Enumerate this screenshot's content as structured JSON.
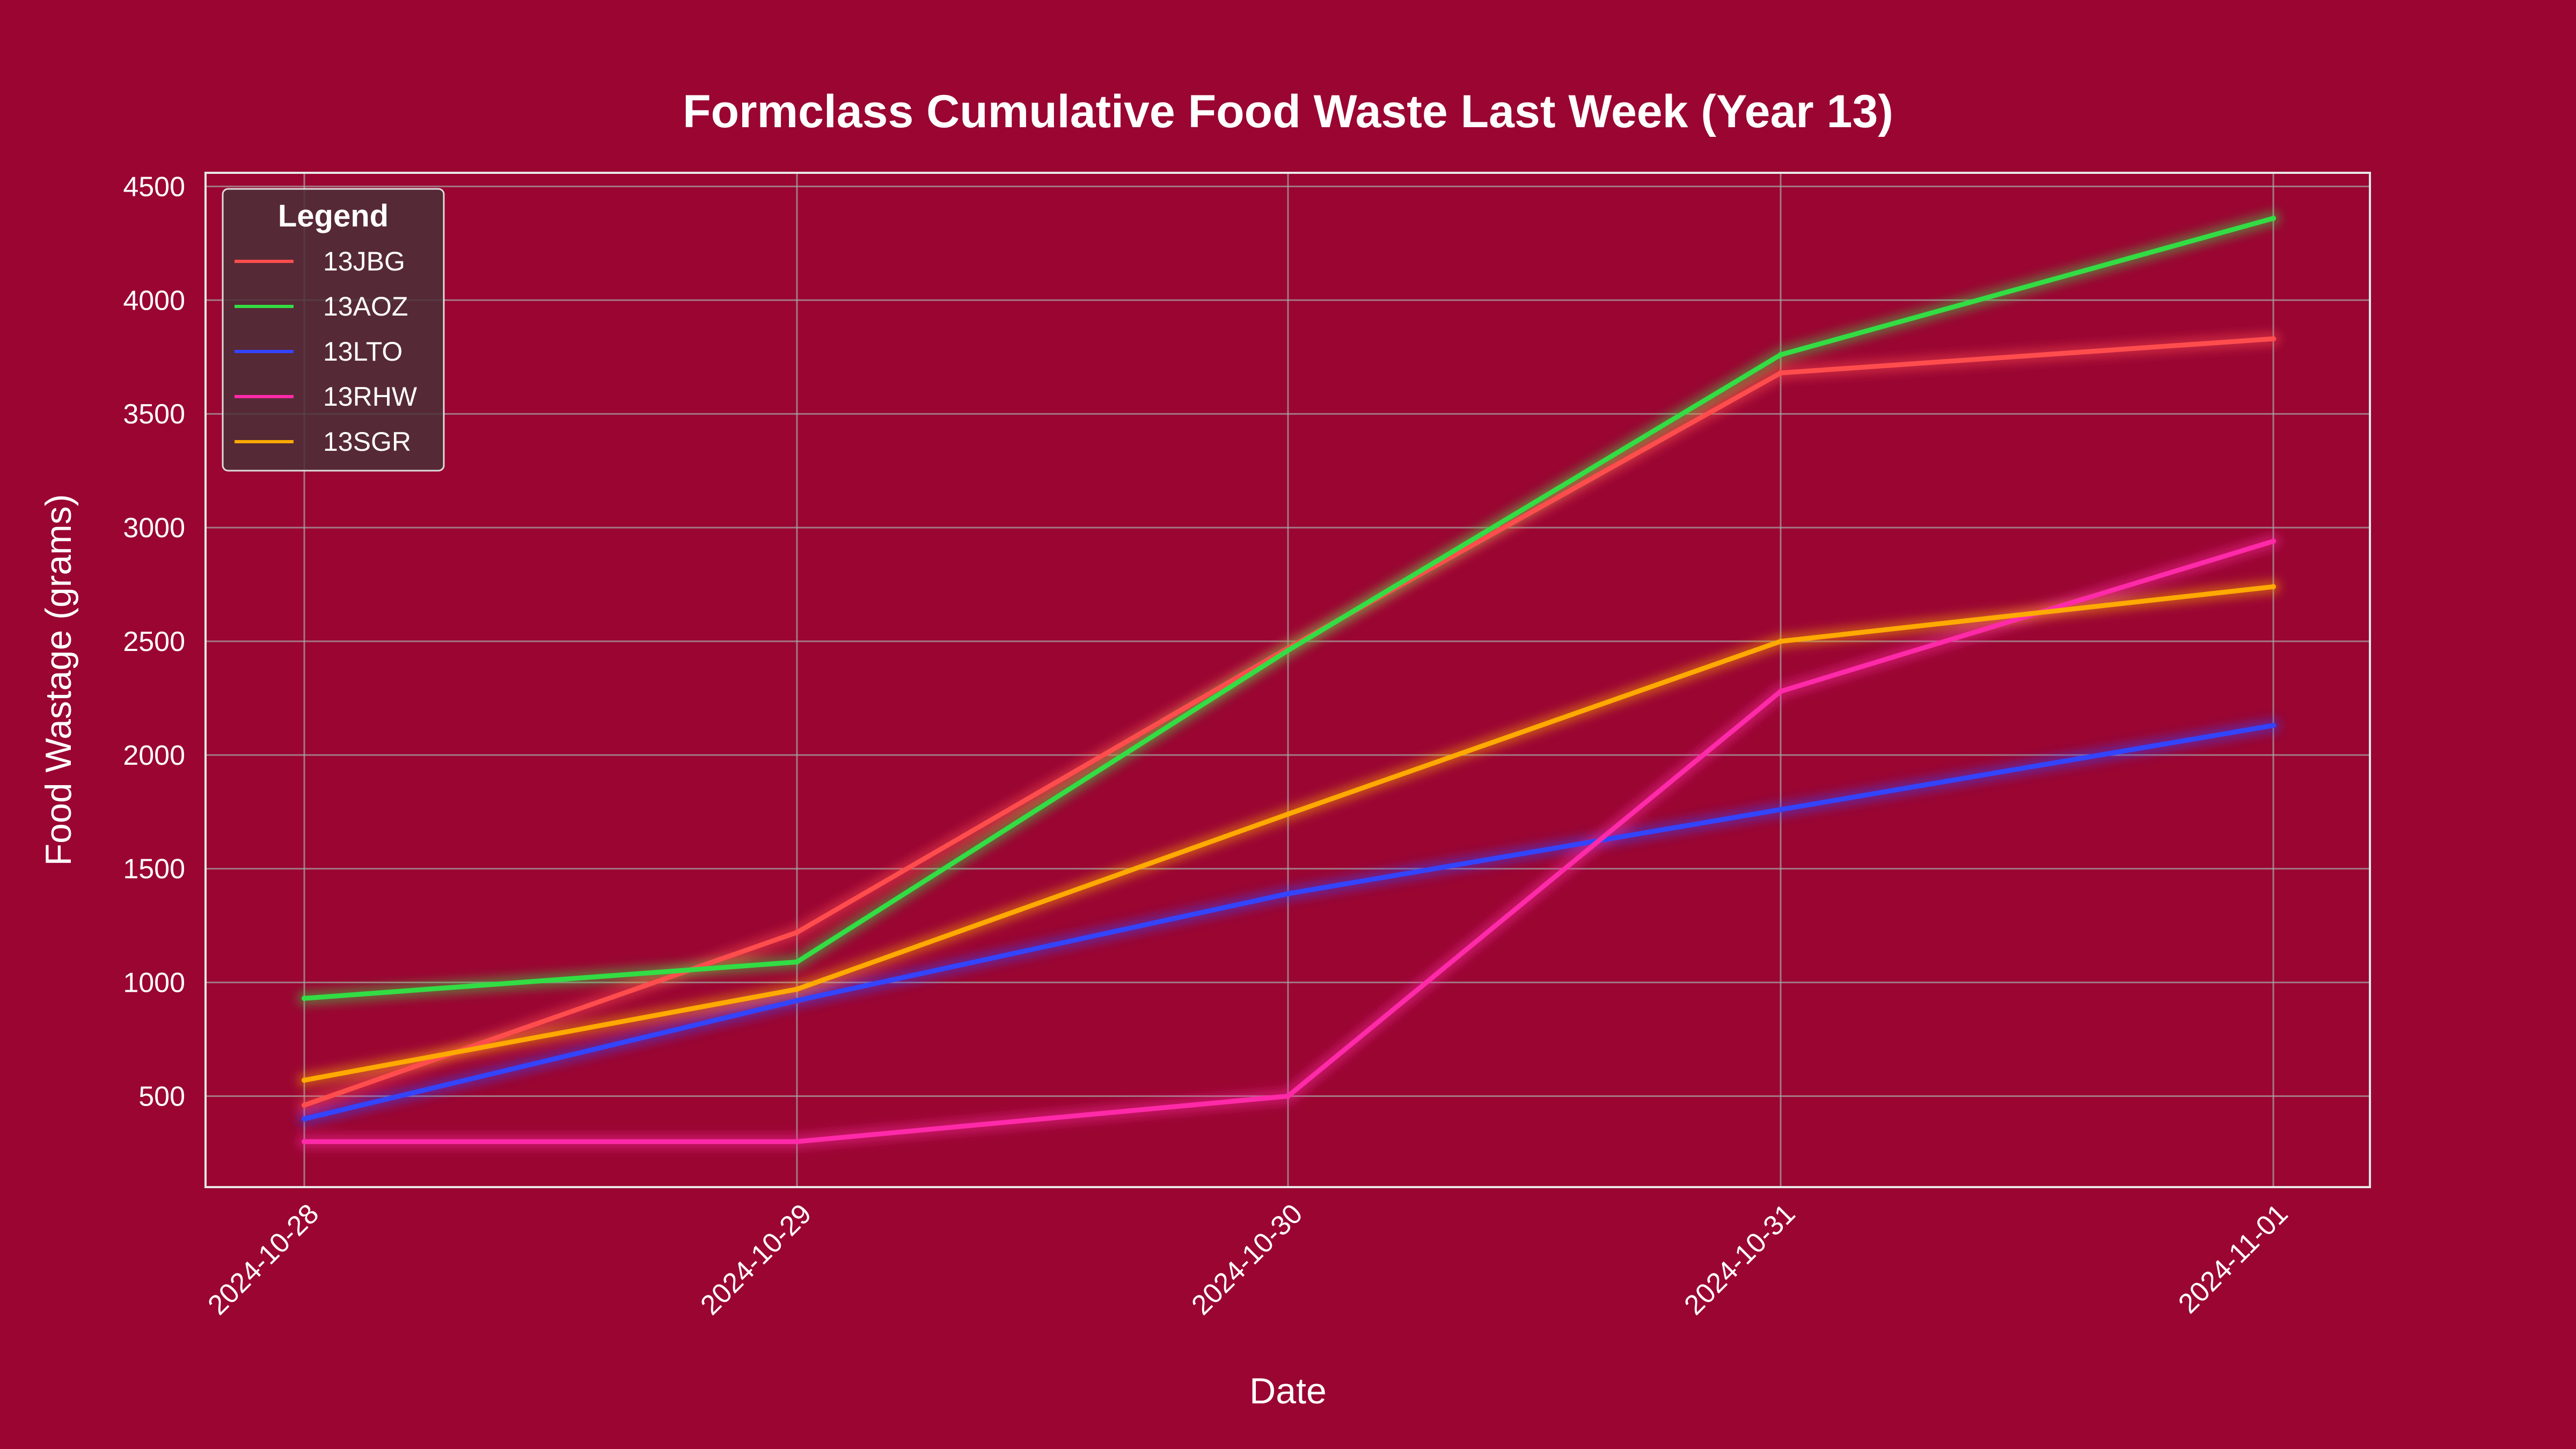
{
  "chart_data": {
    "type": "line",
    "title": "Formclass Cumulative Food Waste Last Week (Year 13)",
    "xlabel": "Date",
    "ylabel": "Food Wastage (grams)",
    "categories": [
      "2024-10-28",
      "2024-10-29",
      "2024-10-30",
      "2024-10-31",
      "2024-11-01"
    ],
    "ylim": [
      100,
      4560
    ],
    "yticks": [
      500,
      1000,
      1500,
      2000,
      2500,
      3000,
      3500,
      4000,
      4500
    ],
    "grid": true,
    "legend": {
      "title": "Legend",
      "placement": "upper-left"
    },
    "series": [
      {
        "name": "13JBG",
        "color": "#ff4d4d",
        "values": [
          460,
          1220,
          2470,
          3680,
          3830
        ]
      },
      {
        "name": "13AOZ",
        "color": "#33dd44",
        "values": [
          930,
          1090,
          2460,
          3760,
          4360
        ]
      },
      {
        "name": "13LTO",
        "color": "#3344ff",
        "values": [
          400,
          920,
          1390,
          1760,
          2130
        ]
      },
      {
        "name": "13RHW",
        "color": "#ff2aa8",
        "values": [
          300,
          300,
          500,
          2280,
          2940
        ]
      },
      {
        "name": "13SGR",
        "color": "#ffaa00",
        "values": [
          570,
          970,
          1740,
          2500,
          2740
        ]
      }
    ]
  }
}
